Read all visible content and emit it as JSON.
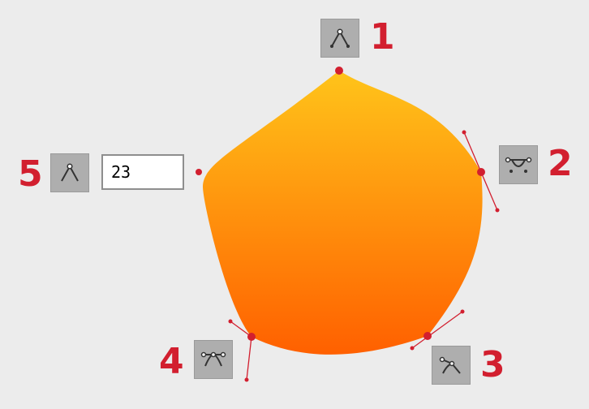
{
  "colors": {
    "gradient_top": "#ffc41a",
    "gradient_bottom": "#ff6000",
    "handle": "#d21f2f",
    "button_bg": "#aeaeae",
    "number": "#d21f2f"
  },
  "nodes": [
    {
      "number": "1",
      "type": "corner",
      "icon": "corner-node-icon"
    },
    {
      "number": "2",
      "type": "smooth",
      "icon": "smooth-node-icon"
    },
    {
      "number": "3",
      "type": "cusp",
      "icon": "cusp-node-icon"
    },
    {
      "number": "4",
      "type": "symmetric",
      "icon": "symmetric-node-icon"
    },
    {
      "number": "5",
      "type": "corner",
      "icon": "corner-node-icon"
    }
  ],
  "radius_field": {
    "value": "23"
  }
}
